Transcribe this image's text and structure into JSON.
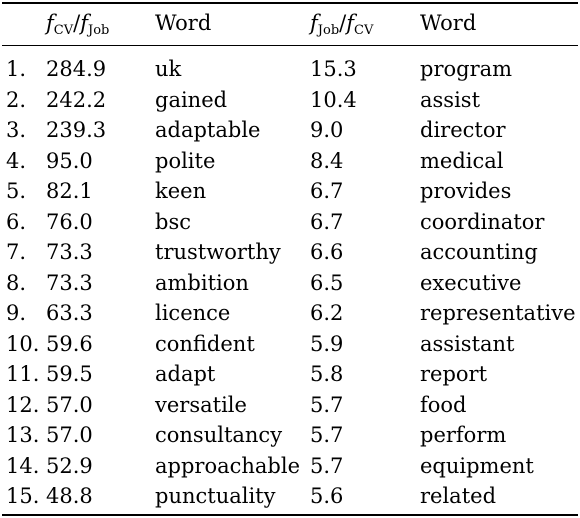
{
  "header": {
    "ratio1_num": "f",
    "ratio1_num_sub": "CV",
    "ratio1_den": "f",
    "ratio1_den_sub": "Job",
    "word1": "Word",
    "ratio2_num": "f",
    "ratio2_num_sub": "Job",
    "ratio2_den": "f",
    "ratio2_den_sub": "CV",
    "word2": "Word",
    "slash": "/"
  },
  "rows": [
    {
      "idx": "1.",
      "r1": "284.9",
      "w1": "uk",
      "r2": "15.3",
      "w2": "program"
    },
    {
      "idx": "2.",
      "r1": "242.2",
      "w1": "gained",
      "r2": "10.4",
      "w2": "assist"
    },
    {
      "idx": "3.",
      "r1": "239.3",
      "w1": "adaptable",
      "r2": "9.0",
      "w2": "director"
    },
    {
      "idx": "4.",
      "r1": "95.0",
      "w1": "polite",
      "r2": "8.4",
      "w2": "medical"
    },
    {
      "idx": "5.",
      "r1": "82.1",
      "w1": "keen",
      "r2": "6.7",
      "w2": "provides"
    },
    {
      "idx": "6.",
      "r1": "76.0",
      "w1": "bsc",
      "r2": "6.7",
      "w2": "coordinator"
    },
    {
      "idx": "7.",
      "r1": "73.3",
      "w1": "trustworthy",
      "r2": "6.6",
      "w2": "accounting"
    },
    {
      "idx": "8.",
      "r1": "73.3",
      "w1": "ambition",
      "r2": "6.5",
      "w2": "executive"
    },
    {
      "idx": "9.",
      "r1": "63.3",
      "w1": "licence",
      "r2": "6.2",
      "w2": "representative"
    },
    {
      "idx": "10.",
      "r1": "59.6",
      "w1": "confident",
      "r2": "5.9",
      "w2": "assistant"
    },
    {
      "idx": "11.",
      "r1": "59.5",
      "w1": "adapt",
      "r2": "5.8",
      "w2": "report"
    },
    {
      "idx": "12.",
      "r1": "57.0",
      "w1": "versatile",
      "r2": "5.7",
      "w2": "food"
    },
    {
      "idx": "13.",
      "r1": "57.0",
      "w1": "consultancy",
      "r2": "5.7",
      "w2": "perform"
    },
    {
      "idx": "14.",
      "r1": "52.9",
      "w1": "approachable",
      "r2": "5.7",
      "w2": "equipment"
    },
    {
      "idx": "15.",
      "r1": "48.8",
      "w1": "punctuality",
      "r2": "5.6",
      "w2": "related"
    }
  ]
}
